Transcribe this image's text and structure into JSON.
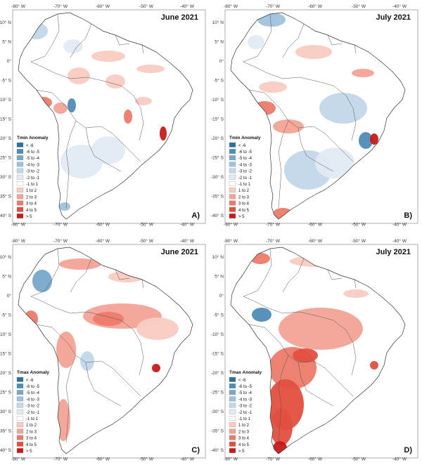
{
  "panels": [
    {
      "id": "A",
      "title": "June 2021",
      "label": "A)",
      "legend_title": "Tmin Anomaly",
      "left_ticks": [
        "10° N",
        "5° N",
        "0°",
        "-5° S",
        "-10° S",
        "-15° S",
        "-20° S",
        "-25° S",
        "-30° S",
        "-35° S",
        "-40° S"
      ],
      "top_ticks": [
        "-80° W",
        "-70° W",
        "-60° W",
        "-50° W",
        "-40° W"
      ],
      "bottom_ticks": [
        "-80° W",
        "-70° W",
        "-60° W",
        "-50° W",
        "-40° W"
      ]
    },
    {
      "id": "B",
      "title": "July 2021",
      "label": "B)",
      "legend_title": "Tmin Anomaly",
      "left_ticks": [
        "10° N",
        "5° N",
        "0°",
        "-5° S",
        "-10° S",
        "-15° S",
        "-20° S",
        "-25° S",
        "-30° S",
        "-35° S",
        "-40° S"
      ],
      "top_ticks": [
        "-80° W",
        "-70° W",
        "-60° W",
        "-50° W",
        "-40° W"
      ],
      "bottom_ticks": [
        "-80° W",
        "-70° W",
        "-60° W",
        "-50° W",
        "-40° W"
      ]
    },
    {
      "id": "C",
      "title": "June 2021",
      "label": "C)",
      "legend_title": "Tmax Anomaly",
      "left_ticks": [
        "10° N",
        "5° N",
        "0°",
        "-5° S",
        "-10° S",
        "-15° S",
        "-20° S",
        "-25° S",
        "-30° S",
        "-35° S",
        "-40° S"
      ],
      "top_ticks": [
        "-80° W",
        "-70° W",
        "-60° W",
        "-50° W",
        "-40° W"
      ],
      "bottom_ticks": [
        "-80° W",
        "-70° W",
        "-60° W",
        "-50° W",
        "-40° W"
      ]
    },
    {
      "id": "D",
      "title": "July 2021",
      "label": "D)",
      "legend_title": "Tmax Anomaly",
      "left_ticks": [
        "10° N",
        "5° N",
        "0°",
        "-5° S",
        "-10° S",
        "-15° S",
        "-20° S",
        "-25° S",
        "-30° S",
        "-35° S",
        "-40° S"
      ],
      "top_ticks": [
        "-80° W",
        "-70° W",
        "-60° W",
        "-50° W",
        "-40° W"
      ],
      "bottom_ticks": [
        "-80° W",
        "-70° W",
        "-60° W",
        "-50° W",
        "-40° W"
      ]
    }
  ],
  "legend": [
    {
      "label": "< -6",
      "color": "#2e6f9e"
    },
    {
      "label": "-6 to -5",
      "color": "#4f8cb8"
    },
    {
      "label": "-5 to -4",
      "color": "#76a8cc"
    },
    {
      "label": "-4 to -3",
      "color": "#9fc1dd"
    },
    {
      "label": "-3 to -2",
      "color": "#c2d7ea"
    },
    {
      "label": "-2 to -1",
      "color": "#e1ebf4"
    },
    {
      "label": "-1 to 1",
      "color": "#ffffff"
    },
    {
      "label": "1 to 2",
      "color": "#f8cbc2"
    },
    {
      "label": "2 to 3",
      "color": "#f2a396"
    },
    {
      "label": "3 to 4",
      "color": "#ec7a6a"
    },
    {
      "label": "4 to 5",
      "color": "#e34f3f"
    },
    {
      "label": "> 5",
      "color": "#c71a1a"
    }
  ]
}
